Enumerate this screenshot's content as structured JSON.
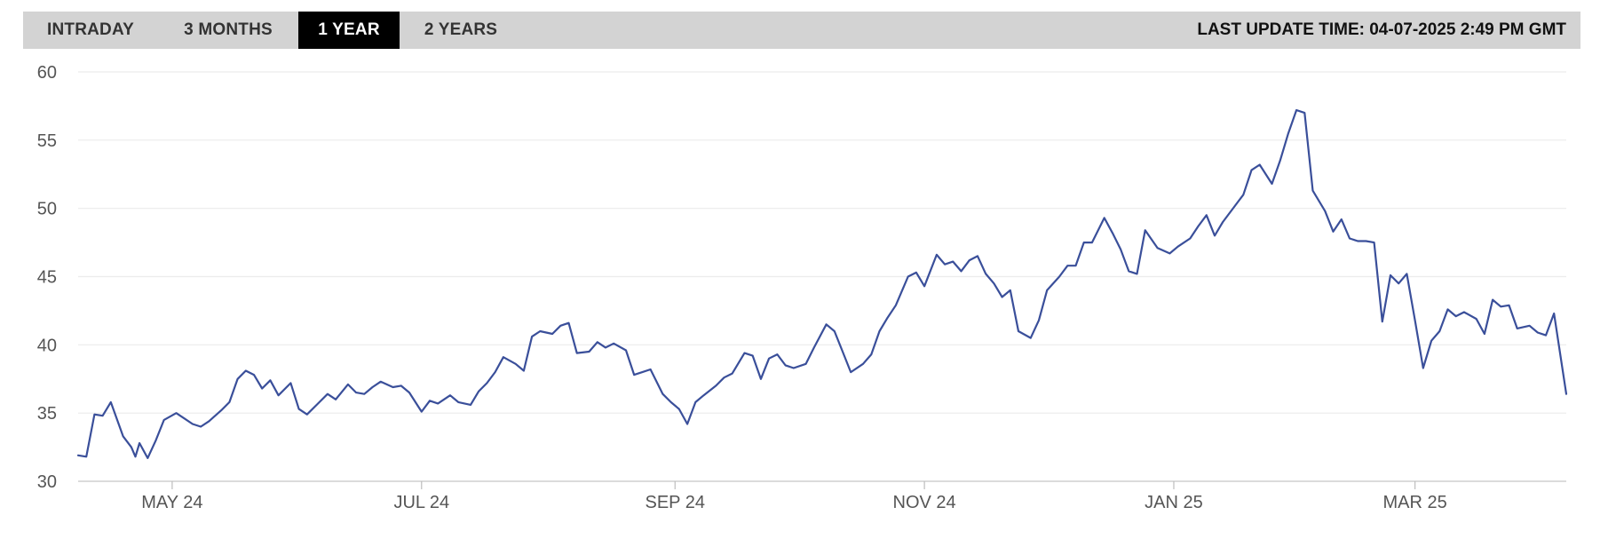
{
  "range_tabs": [
    {
      "label": "INTRADAY",
      "active": false
    },
    {
      "label": "3 MONTHS",
      "active": false
    },
    {
      "label": "1 YEAR",
      "active": true
    },
    {
      "label": "2 YEARS",
      "active": false
    }
  ],
  "last_update": {
    "label": "LAST UPDATE TIME:",
    "value": "04-07-2025 2:49 PM GMT"
  },
  "colors": {
    "line": "#3a4f9a",
    "toolbar_bg": "#d3d3d3",
    "active_tab_bg": "#000000",
    "grid": "#ececec"
  },
  "chart_data": {
    "type": "line",
    "title": "",
    "xlabel": "",
    "ylabel": "",
    "ylim": [
      30,
      60
    ],
    "xlim": [
      "2024-04-08",
      "2025-04-07"
    ],
    "y_ticks": [
      30,
      35,
      40,
      45,
      50,
      55,
      60
    ],
    "x_ticks": [
      {
        "label": "MAY 24",
        "date": "2024-05-01"
      },
      {
        "label": "JUL 24",
        "date": "2024-07-01"
      },
      {
        "label": "SEP 24",
        "date": "2024-09-01"
      },
      {
        "label": "NOV 24",
        "date": "2024-11-01"
      },
      {
        "label": "JAN 25",
        "date": "2025-01-01"
      },
      {
        "label": "MAR 25",
        "date": "2025-03-01"
      }
    ],
    "grid": true,
    "legend": "none",
    "series": [
      {
        "x": [
          "2024-04-08",
          "2024-04-10",
          "2024-04-12",
          "2024-04-14",
          "2024-04-16",
          "2024-04-19",
          "2024-04-21",
          "2024-04-22",
          "2024-04-23",
          "2024-04-25",
          "2024-04-27",
          "2024-04-29",
          "2024-05-02",
          "2024-05-04",
          "2024-05-06",
          "2024-05-08",
          "2024-05-10",
          "2024-05-13",
          "2024-05-15",
          "2024-05-17",
          "2024-05-19",
          "2024-05-21",
          "2024-05-23",
          "2024-05-25",
          "2024-05-27",
          "2024-05-30",
          "2024-06-01",
          "2024-06-03",
          "2024-06-06",
          "2024-06-08",
          "2024-06-10",
          "2024-06-13",
          "2024-06-15",
          "2024-06-17",
          "2024-06-19",
          "2024-06-21",
          "2024-06-24",
          "2024-06-26",
          "2024-06-28",
          "2024-07-01",
          "2024-07-03",
          "2024-07-05",
          "2024-07-08",
          "2024-07-10",
          "2024-07-13",
          "2024-07-15",
          "2024-07-17",
          "2024-07-19",
          "2024-07-21",
          "2024-07-24",
          "2024-07-26",
          "2024-07-28",
          "2024-07-30",
          "2024-08-02",
          "2024-08-04",
          "2024-08-06",
          "2024-08-08",
          "2024-08-11",
          "2024-08-13",
          "2024-08-15",
          "2024-08-17",
          "2024-08-20",
          "2024-08-22",
          "2024-08-24",
          "2024-08-26",
          "2024-08-29",
          "2024-08-31",
          "2024-09-02",
          "2024-09-04",
          "2024-09-06",
          "2024-09-08",
          "2024-09-11",
          "2024-09-13",
          "2024-09-15",
          "2024-09-18",
          "2024-09-20",
          "2024-09-22",
          "2024-09-24",
          "2024-09-26",
          "2024-09-28",
          "2024-09-30",
          "2024-10-03",
          "2024-10-05",
          "2024-10-08",
          "2024-10-10",
          "2024-10-12",
          "2024-10-14",
          "2024-10-17",
          "2024-10-19",
          "2024-10-21",
          "2024-10-23",
          "2024-10-25",
          "2024-10-28",
          "2024-10-30",
          "2024-11-01",
          "2024-11-04",
          "2024-11-06",
          "2024-11-08",
          "2024-11-10",
          "2024-11-12",
          "2024-11-14",
          "2024-11-16",
          "2024-11-18",
          "2024-11-20",
          "2024-11-22",
          "2024-11-24",
          "2024-11-27",
          "2024-11-29",
          "2024-12-01",
          "2024-12-04",
          "2024-12-06",
          "2024-12-08",
          "2024-12-10",
          "2024-12-12",
          "2024-12-15",
          "2024-12-17",
          "2024-12-19",
          "2024-12-21",
          "2024-12-23",
          "2024-12-25",
          "2024-12-28",
          "2024-12-31",
          "2025-01-02",
          "2025-01-05",
          "2025-01-07",
          "2025-01-09",
          "2025-01-11",
          "2025-01-13",
          "2025-01-16",
          "2025-01-18",
          "2025-01-20",
          "2025-01-22",
          "2025-01-25",
          "2025-01-27",
          "2025-01-29",
          "2025-01-31",
          "2025-02-02",
          "2025-02-04",
          "2025-02-07",
          "2025-02-09",
          "2025-02-11",
          "2025-02-13",
          "2025-02-15",
          "2025-02-17",
          "2025-02-19",
          "2025-02-21",
          "2025-02-23",
          "2025-02-25",
          "2025-02-27",
          "2025-03-01",
          "2025-03-03",
          "2025-03-05",
          "2025-03-07",
          "2025-03-09",
          "2025-03-11",
          "2025-03-13",
          "2025-03-16",
          "2025-03-18",
          "2025-03-20",
          "2025-03-22",
          "2025-03-24",
          "2025-03-26",
          "2025-03-29",
          "2025-03-31",
          "2025-04-02",
          "2025-04-04",
          "2025-04-07"
        ],
        "values": [
          31.9,
          31.8,
          34.9,
          34.8,
          35.8,
          33.3,
          32.5,
          31.8,
          32.8,
          31.7,
          33.0,
          34.5,
          35.0,
          34.6,
          34.2,
          34.0,
          34.4,
          35.2,
          35.8,
          37.5,
          38.1,
          37.8,
          36.8,
          37.4,
          36.3,
          37.2,
          35.3,
          34.9,
          35.8,
          36.4,
          36.0,
          37.1,
          36.5,
          36.4,
          36.9,
          37.3,
          36.9,
          37.0,
          36.5,
          35.1,
          35.9,
          35.7,
          36.3,
          35.8,
          35.6,
          36.6,
          37.2,
          38.0,
          39.1,
          38.6,
          38.1,
          40.6,
          41.0,
          40.8,
          41.4,
          41.6,
          39.4,
          39.5,
          40.2,
          39.8,
          40.1,
          39.6,
          37.8,
          38.0,
          38.2,
          36.4,
          35.8,
          35.3,
          34.2,
          35.8,
          36.3,
          37.0,
          37.6,
          37.9,
          39.4,
          39.2,
          37.5,
          39.0,
          39.3,
          38.5,
          38.3,
          38.6,
          39.8,
          41.5,
          41.0,
          39.5,
          38.0,
          38.6,
          39.3,
          41.0,
          42.0,
          42.9,
          45.0,
          45.3,
          44.3,
          46.6,
          45.9,
          46.1,
          45.4,
          46.2,
          46.5,
          45.2,
          44.5,
          43.5,
          44.0,
          41.0,
          40.5,
          41.8,
          44.0,
          45.0,
          45.8,
          45.8,
          47.5,
          47.5,
          49.3,
          48.2,
          47.0,
          45.4,
          45.2,
          48.4,
          47.1,
          46.7,
          47.2,
          47.8,
          48.7,
          49.5,
          48.0,
          49.0,
          50.2,
          51.0,
          52.8,
          53.2,
          51.8,
          53.5,
          55.5,
          57.2,
          57.0,
          51.3,
          49.8,
          48.3,
          49.2,
          47.8,
          47.6,
          47.6,
          47.5,
          41.7,
          45.1,
          44.5,
          45.2,
          41.8,
          38.3,
          40.3,
          41.0,
          42.6,
          42.1,
          42.4,
          41.9,
          40.8,
          43.3,
          42.8,
          42.9,
          41.2,
          41.4,
          40.9,
          40.7,
          42.3,
          36.4
        ]
      }
    ]
  }
}
